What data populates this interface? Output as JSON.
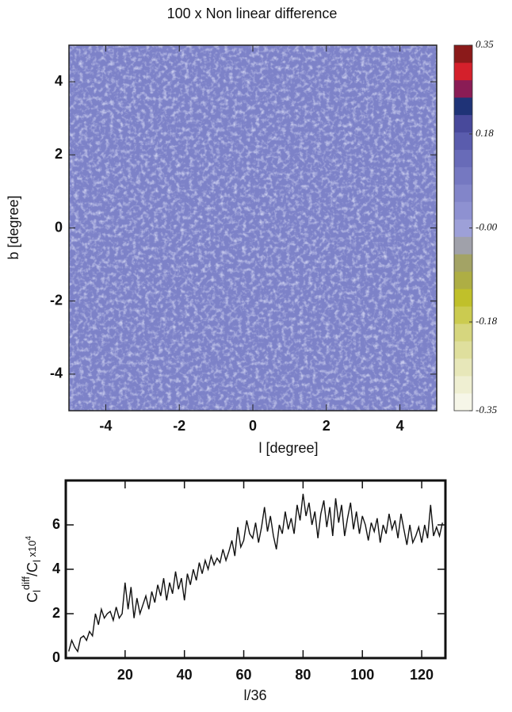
{
  "chart_data": [
    {
      "type": "heatmap",
      "title": "100 x Non linear difference",
      "xlabel": "l [degree]",
      "ylabel": "b [degree]",
      "xlim": [
        -5,
        5
      ],
      "ylim": [
        -5,
        5
      ],
      "xticks": [
        -4,
        -2,
        0,
        2,
        4
      ],
      "yticks": [
        -4,
        -2,
        0,
        2,
        4
      ],
      "field_color": "#7d82c8",
      "colorbar": {
        "clim": [
          -0.35,
          0.35
        ],
        "colors": [
          "#f6f6e8",
          "#efefd2",
          "#e7e7b9",
          "#dfdf9d",
          "#d6d67e",
          "#cbcb50",
          "#c0c02a",
          "#aeae44",
          "#a3a365",
          "#a0a1aa",
          "#9da0d8",
          "#8e91d1",
          "#8285c9",
          "#7578c1",
          "#686bb8",
          "#5a5cad",
          "#48499b",
          "#1f3377",
          "#8a1c55",
          "#d4202b",
          "#8b1a1a"
        ],
        "ticks": [
          -0.35,
          -0.18,
          {
            "value": 0,
            "label": "-0.00"
          },
          0.18,
          0.35
        ]
      }
    },
    {
      "type": "line",
      "xlabel": "l/36",
      "ylabel": [
        "C",
        "l",
        "diff",
        "/C",
        "l",
        " x10",
        "4"
      ],
      "xlim": [
        0,
        128
      ],
      "ylim": [
        0,
        8
      ],
      "xticks": [
        20,
        40,
        60,
        80,
        100,
        120
      ],
      "yticks": [
        0,
        2,
        4,
        6
      ],
      "color": "#111111",
      "x": [
        1,
        2,
        3,
        4,
        5,
        6,
        7,
        8,
        9,
        10,
        11,
        12,
        13,
        14,
        15,
        16,
        17,
        18,
        19,
        20,
        21,
        22,
        23,
        24,
        25,
        26,
        27,
        28,
        29,
        30,
        31,
        32,
        33,
        34,
        35,
        36,
        37,
        38,
        39,
        40,
        41,
        42,
        43,
        44,
        45,
        46,
        47,
        48,
        49,
        50,
        51,
        52,
        53,
        54,
        55,
        56,
        57,
        58,
        59,
        60,
        61,
        62,
        63,
        64,
        65,
        66,
        67,
        68,
        69,
        70,
        71,
        72,
        73,
        74,
        75,
        76,
        77,
        78,
        79,
        80,
        81,
        82,
        83,
        84,
        85,
        86,
        87,
        88,
        89,
        90,
        91,
        92,
        93,
        94,
        95,
        96,
        97,
        98,
        99,
        100,
        101,
        102,
        103,
        104,
        105,
        106,
        107,
        108,
        109,
        110,
        111,
        112,
        113,
        114,
        115,
        116,
        117,
        118,
        119,
        120,
        121,
        122,
        123,
        124,
        125,
        126,
        127
      ],
      "values": [
        0.3,
        0.8,
        0.5,
        0.3,
        0.9,
        1.0,
        0.8,
        1.2,
        1.0,
        2.0,
        1.5,
        2.2,
        1.8,
        2.0,
        2.1,
        1.7,
        2.3,
        1.8,
        2.0,
        3.4,
        2.2,
        3.2,
        1.8,
        2.7,
        2.0,
        2.4,
        2.8,
        2.2,
        3.0,
        2.5,
        3.3,
        2.8,
        3.6,
        2.6,
        3.4,
        2.9,
        3.9,
        3.1,
        3.6,
        2.6,
        3.8,
        3.3,
        4.0,
        3.5,
        4.3,
        3.8,
        4.4,
        4.0,
        4.6,
        4.2,
        4.5,
        4.3,
        4.9,
        4.4,
        4.8,
        5.3,
        4.6,
        5.9,
        5.0,
        5.3,
        6.2,
        5.6,
        5.4,
        6.1,
        5.2,
        5.9,
        6.8,
        5.7,
        6.4,
        5.5,
        4.9,
        6.0,
        5.6,
        6.6,
        5.8,
        6.3,
        5.6,
        6.9,
        6.2,
        7.4,
        6.4,
        7.0,
        6.0,
        6.6,
        5.4,
        6.5,
        7.1,
        5.9,
        6.8,
        5.5,
        7.2,
        6.1,
        6.9,
        5.5,
        6.3,
        7.0,
        5.8,
        6.6,
        5.6,
        6.4,
        6.0,
        5.3,
        6.1,
        5.7,
        6.3,
        5.2,
        6.0,
        5.6,
        6.5,
        5.8,
        6.2,
        5.4,
        6.5,
        5.8,
        5.1,
        6.0,
        5.2,
        5.5,
        5.9,
        5.2,
        6.0,
        5.4,
        6.9,
        5.5,
        5.9,
        5.5,
        6.1
      ]
    }
  ]
}
